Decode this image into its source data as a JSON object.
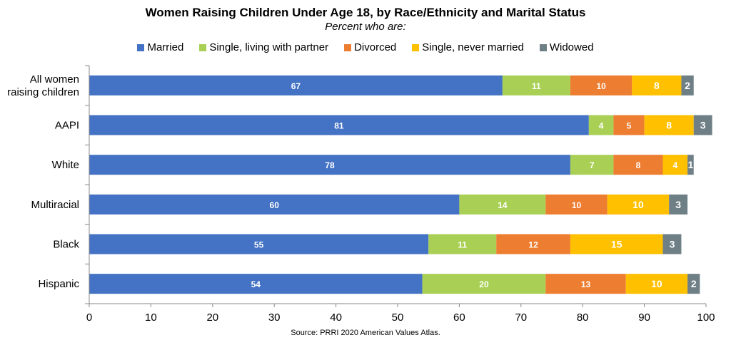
{
  "chart_data": {
    "type": "bar",
    "orientation": "horizontal",
    "stacked": true,
    "title": "Women Raising Children Under Age 18, by Race/Ethnicity and Marital Status",
    "subtitle": "Percent who are:",
    "categories": [
      [
        "All women",
        "raising children"
      ],
      [
        "AAPI"
      ],
      [
        "White"
      ],
      [
        "Multiracial"
      ],
      [
        "Black"
      ],
      [
        "Hispanic"
      ]
    ],
    "series": [
      {
        "name": "Married",
        "color": "#4472C4",
        "values": [
          67,
          81,
          78,
          60,
          55,
          54
        ]
      },
      {
        "name": "Single, living with partner",
        "color": "#A9D055",
        "values": [
          11,
          4,
          7,
          14,
          11,
          20
        ]
      },
      {
        "name": "Divorced",
        "color": "#ED7D31",
        "values": [
          10,
          5,
          8,
          10,
          12,
          13
        ]
      },
      {
        "name": "Single, never married",
        "color": "#FFC000",
        "values": [
          8,
          8,
          4,
          10,
          15,
          10
        ]
      },
      {
        "name": "Widowed",
        "color": "#6F7F86",
        "values": [
          2,
          3,
          1,
          3,
          3,
          2
        ]
      }
    ],
    "xlim": [
      0,
      100
    ],
    "xticks": [
      0,
      10,
      20,
      30,
      40,
      50,
      60,
      70,
      80,
      90,
      100
    ],
    "legend_position": "top",
    "grid": false,
    "source": "Source: PRRI 2020 American Values Atlas."
  }
}
